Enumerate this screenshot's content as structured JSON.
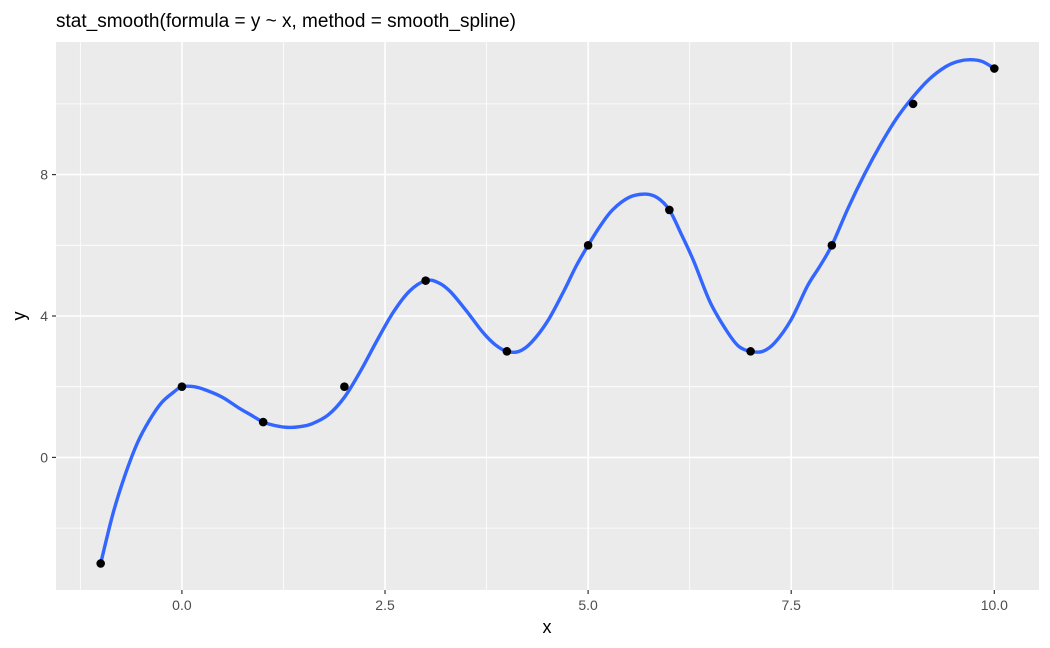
{
  "chart_data": {
    "type": "line",
    "title": "stat_smooth(formula = y ~ x, method = smooth_spline)",
    "xlabel": "x",
    "ylabel": "y",
    "xlim": [
      -1.55,
      10.55
    ],
    "ylim": [
      -3.75,
      11.75
    ],
    "x_ticks": [
      0.0,
      2.5,
      5.0,
      7.5,
      10.0
    ],
    "x_tick_labels": [
      "0.0",
      "2.5",
      "5.0",
      "7.5",
      "10.0"
    ],
    "y_ticks": [
      0,
      4,
      8
    ],
    "y_tick_labels": [
      "0",
      "4",
      "8"
    ],
    "x_minor_ticks": [
      -1.25,
      1.25,
      3.75,
      6.25,
      8.75
    ],
    "y_minor_ticks": [
      -2,
      2,
      6,
      10
    ],
    "grid": true,
    "legend": "none",
    "colors": {
      "panel": "#ebebeb",
      "grid": "#ffffff",
      "line": "#3366ff",
      "points": "#000000"
    },
    "series": [
      {
        "kind": "points",
        "x": [
          -1,
          0,
          1,
          2,
          3,
          4,
          5,
          6,
          7,
          8,
          9,
          10
        ],
        "y": [
          -3,
          2,
          1,
          2,
          5,
          3,
          6,
          7,
          3,
          6,
          10,
          11
        ]
      },
      {
        "kind": "smooth",
        "x": [
          -1,
          -0.85,
          -0.7,
          -0.55,
          -0.4,
          -0.25,
          -0.1,
          0,
          0.15,
          0.3,
          0.5,
          0.7,
          0.85,
          1,
          1.15,
          1.3,
          1.45,
          1.6,
          1.8,
          2,
          2.2,
          2.4,
          2.6,
          2.8,
          3,
          3.15,
          3.3,
          3.5,
          3.7,
          3.85,
          4,
          4.15,
          4.3,
          4.5,
          4.7,
          4.85,
          5,
          5.15,
          5.3,
          5.5,
          5.7,
          5.85,
          6,
          6.15,
          6.3,
          6.5,
          6.7,
          6.85,
          7,
          7.15,
          7.3,
          7.5,
          7.7,
          7.85,
          8,
          8.2,
          8.4,
          8.6,
          8.8,
          9,
          9.2,
          9.4,
          9.55,
          9.7,
          9.85,
          10
        ],
        "y": [
          -3,
          -1.6,
          -0.5,
          0.4,
          1.05,
          1.55,
          1.85,
          2,
          2.0,
          1.9,
          1.7,
          1.4,
          1.2,
          1.0,
          0.9,
          0.85,
          0.87,
          0.95,
          1.2,
          1.7,
          2.45,
          3.3,
          4.1,
          4.7,
          5.0,
          4.95,
          4.7,
          4.15,
          3.55,
          3.2,
          3.0,
          3.0,
          3.25,
          3.85,
          4.7,
          5.4,
          6.0,
          6.55,
          7.0,
          7.35,
          7.45,
          7.35,
          7.0,
          6.3,
          5.55,
          4.4,
          3.6,
          3.15,
          3.0,
          3.0,
          3.25,
          3.9,
          4.85,
          5.4,
          6.0,
          7.05,
          8.0,
          8.85,
          9.6,
          10.2,
          10.7,
          11.05,
          11.2,
          11.25,
          11.2,
          11.0
        ]
      }
    ]
  }
}
